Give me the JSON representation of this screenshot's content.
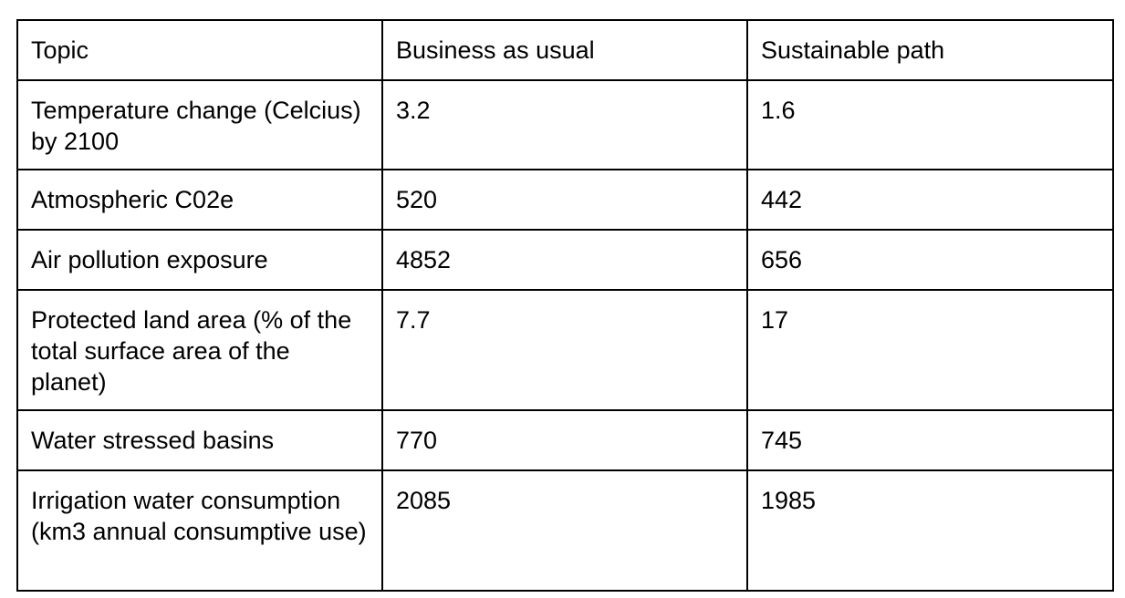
{
  "table": {
    "headers": [
      "Topic",
      "Business as usual",
      "Sustainable path"
    ],
    "rows": [
      [
        "Temperature change (Celcius) by 2100",
        "3.2",
        "1.6"
      ],
      [
        "Atmospheric C02e",
        "520",
        "442"
      ],
      [
        "Air pollution exposure",
        "4852",
        "656"
      ],
      [
        "Protected land area (% of the total surface area of the planet)",
        "7.7",
        "17"
      ],
      [
        "Water stressed basins",
        "770",
        "745"
      ],
      [
        "Irrigation water consumption (km3 annual consumptive use)",
        "2085",
        "1985"
      ]
    ]
  }
}
